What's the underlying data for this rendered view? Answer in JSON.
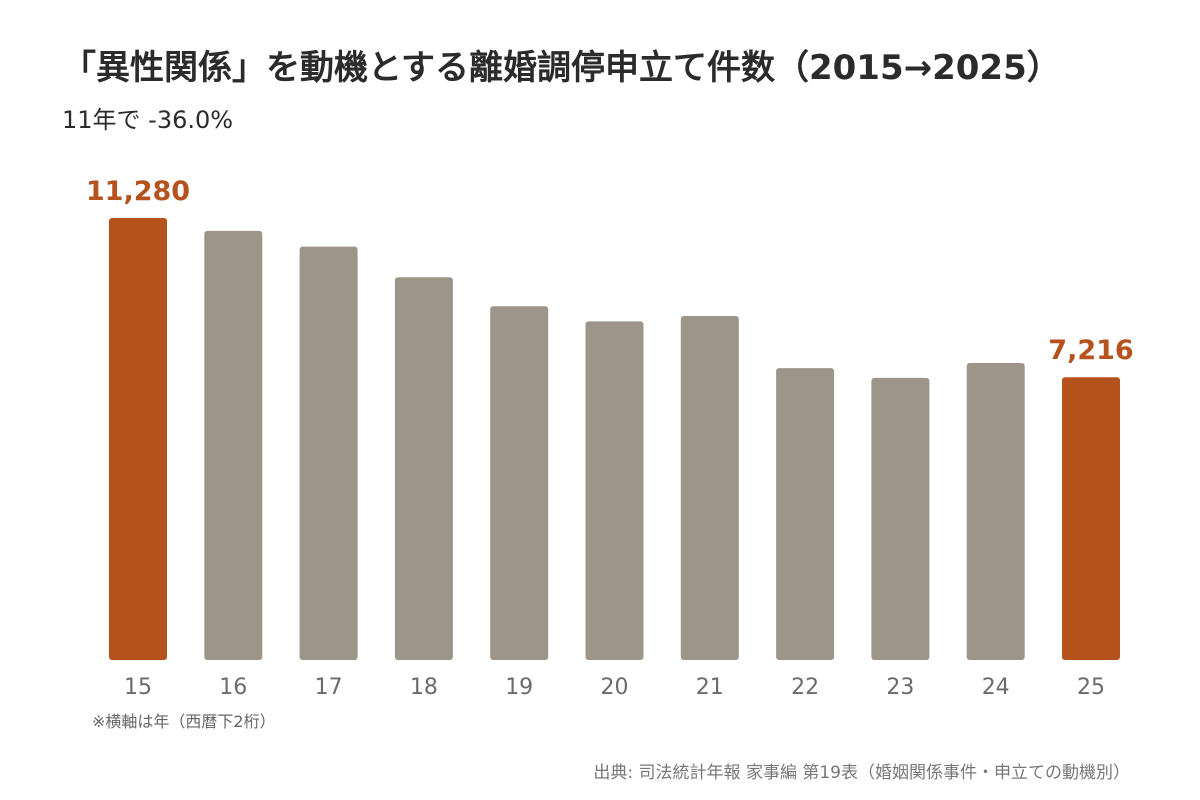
{
  "header": {
    "title": "「異性関係」を動機とする離婚調停申立て件数（2015→2025）",
    "subtitle": "11年で -36.0%"
  },
  "footer": {
    "note": "※横軸は年（西暦下2桁）",
    "source": "出典: 司法統計年報 家事編 第19表（婚姻関係事件・申立ての動機別）"
  },
  "colors": {
    "highlight": "#b5521e",
    "bar": "#9d958a",
    "tick_text": "#6b6b6b"
  },
  "chart_data": {
    "type": "bar",
    "title": "「異性関係」を動機とする離婚調停申立て件数（2015→2025）",
    "xlabel": "",
    "ylabel": "",
    "categories": [
      "15",
      "16",
      "17",
      "18",
      "19",
      "20",
      "21",
      "22",
      "23",
      "24",
      "25"
    ],
    "values": [
      11280,
      10950,
      10550,
      9770,
      9030,
      8640,
      8780,
      7450,
      7200,
      7580,
      7216
    ],
    "highlighted": [
      "15",
      "25"
    ],
    "data_labels": {
      "15": "11,280",
      "25": "7,216"
    },
    "ylim": [
      0,
      11280
    ],
    "grid": false,
    "legend": "none"
  }
}
